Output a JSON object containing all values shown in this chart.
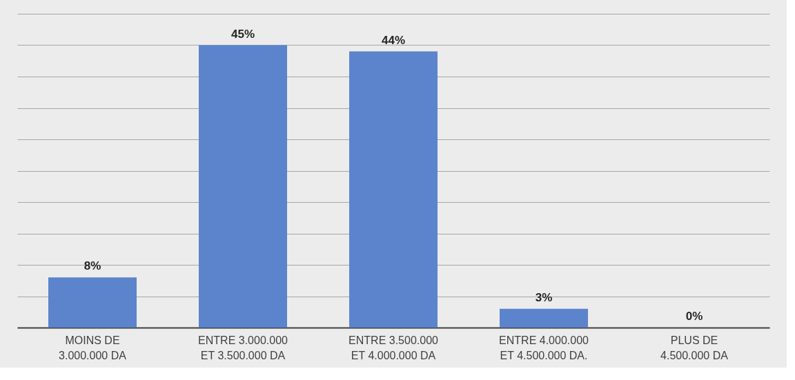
{
  "chart_data": {
    "type": "bar",
    "categories": [
      "MOINS DE\n3.000.000 DA",
      "ENTRE 3.000.000\nET 3.500.000 DA",
      "ENTRE 3.500.000\nET 4.000.000 DA",
      "ENTRE 4.000.000\nET 4.500.000 DA.",
      "PLUS DE\n4.500.000 DA"
    ],
    "values": [
      8,
      45,
      44,
      3,
      0
    ],
    "value_labels": [
      "8%",
      "45%",
      "44%",
      "3%",
      "0%"
    ],
    "color": "#5b84cc",
    "ylim": [
      0,
      50
    ],
    "yticks": [
      {
        "value": 0,
        "label": null
      },
      {
        "value": 5,
        "label": null
      },
      {
        "value": 10,
        "label": null
      },
      {
        "value": 15,
        "label": null
      },
      {
        "value": 20,
        "label": null
      },
      {
        "value": 25,
        "label": null
      },
      {
        "value": 30,
        "label": null
      },
      {
        "value": 35,
        "label": null
      },
      {
        "value": 40,
        "label": null
      },
      {
        "value": 45,
        "label": null
      },
      {
        "value": 50,
        "label": null
      }
    ],
    "grid": "y",
    "tick_labels": "x"
  }
}
